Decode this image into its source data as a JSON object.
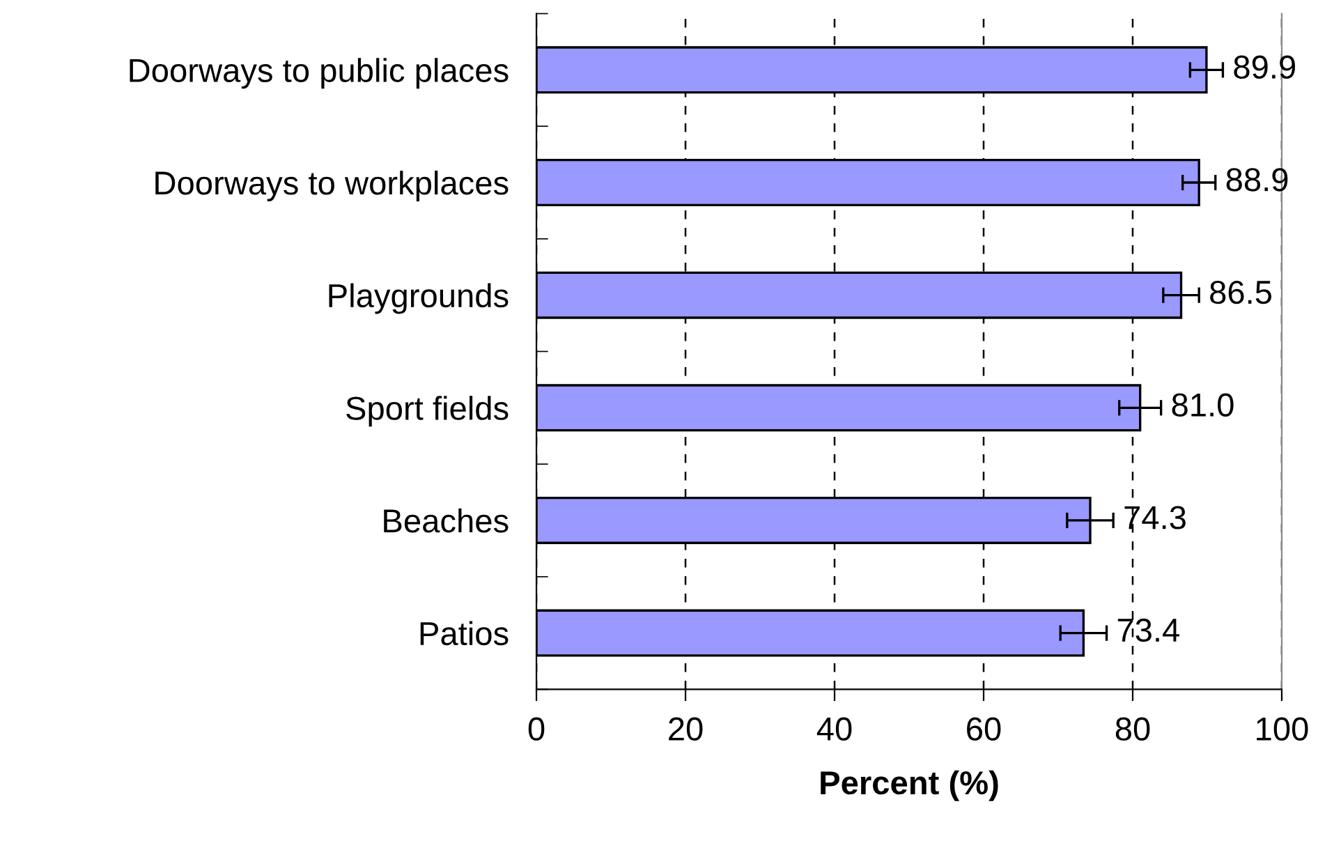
{
  "chart_data": {
    "type": "bar",
    "orientation": "horizontal",
    "xlabel": "Percent (%)",
    "categories": [
      "Doorways to public places",
      "Doorways to workplaces",
      "Playgrounds",
      "Sport fields",
      "Beaches",
      "Patios"
    ],
    "values": [
      89.9,
      88.9,
      86.5,
      81.0,
      74.3,
      73.4
    ],
    "errors": [
      2.2,
      2.2,
      2.4,
      2.8,
      3.1,
      3.1
    ],
    "color": "#9999ff",
    "value_labels": [
      "89.9",
      "88.9",
      "86.5",
      "81.0",
      "74.3",
      "73.4"
    ],
    "xlim": [
      0,
      100
    ],
    "xticks": [
      0,
      20,
      40,
      60,
      80,
      100
    ],
    "grid": "x",
    "legend": false
  }
}
